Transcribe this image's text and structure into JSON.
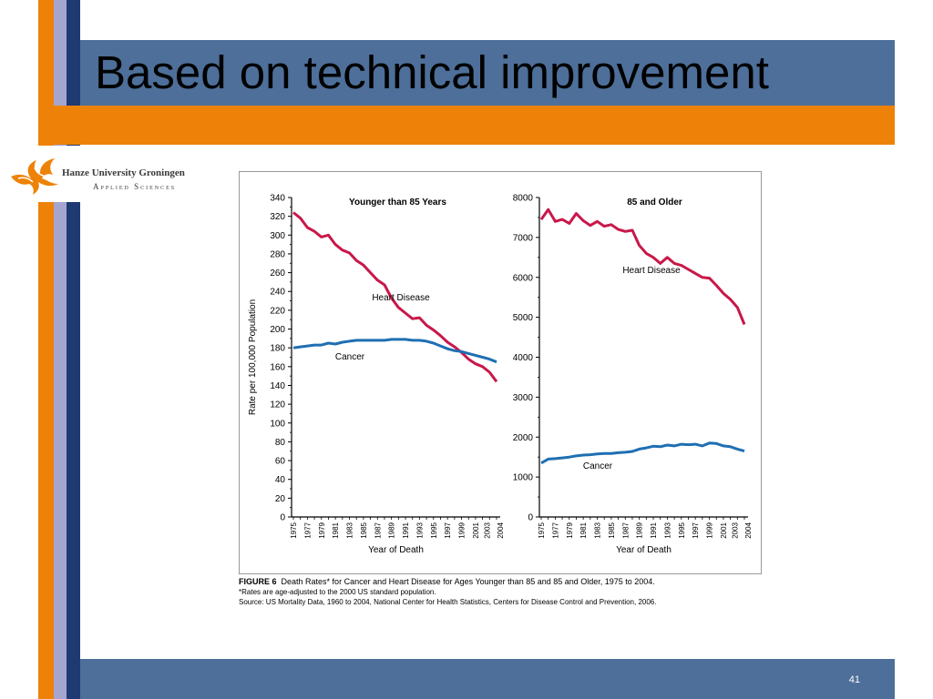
{
  "slide": {
    "title": "Based on technical improvement",
    "page_number": "41"
  },
  "logo": {
    "name": "Hanze University Groningen",
    "subtitle": "Applied Sciences",
    "icon": "flame-logo-icon"
  },
  "colors": {
    "heart_disease": "#c8184a",
    "cancer": "#1f6fb2",
    "orange": "#ee8208",
    "blue_bar": "#4d6f99",
    "navy": "#1f3a72"
  },
  "caption": {
    "figure_label": "FIGURE 6",
    "figure_text": "Death Rates* for Cancer and Heart Disease for Ages Younger than 85 and 85 and Older, 1975 to 2004.",
    "note": "*Rates are age-adjusted to the 2000 US standard population.",
    "source": "Source: US Mortality Data, 1960 to 2004, National Center for Health Statistics, Centers for Disease Control and Prevention, 2006."
  },
  "chart_data": [
    {
      "type": "line",
      "title": "Younger than 85 Years",
      "xlabel": "Year of Death",
      "ylabel": "Rate per 100,000 Population",
      "ylim": [
        0,
        340
      ],
      "yticks": [
        0,
        20,
        40,
        60,
        80,
        100,
        120,
        140,
        160,
        180,
        200,
        220,
        240,
        260,
        280,
        300,
        320,
        340
      ],
      "xticks": [
        "1975",
        "1977",
        "1979",
        "1981",
        "1983",
        "1985",
        "1987",
        "1989",
        "1991",
        "1993",
        "1995",
        "1997",
        "1999",
        "2001",
        "2003",
        "2004"
      ],
      "x": [
        1975,
        1976,
        1977,
        1978,
        1979,
        1980,
        1981,
        1982,
        1983,
        1984,
        1985,
        1986,
        1987,
        1988,
        1989,
        1990,
        1991,
        1992,
        1993,
        1994,
        1995,
        1996,
        1997,
        1998,
        1999,
        2000,
        2001,
        2002,
        2003,
        2004
      ],
      "series": [
        {
          "name": "Heart Disease",
          "values": [
            324,
            318,
            308,
            304,
            298,
            300,
            290,
            284,
            281,
            273,
            268,
            260,
            252,
            247,
            233,
            223,
            217,
            211,
            212,
            204,
            199,
            193,
            186,
            181,
            175,
            168,
            163,
            160,
            154,
            144
          ]
        },
        {
          "name": "Cancer",
          "values": [
            180,
            181,
            182,
            183,
            183,
            185,
            184,
            186,
            187,
            188,
            188,
            188,
            188,
            188,
            189,
            189,
            189,
            188,
            188,
            187,
            185,
            182,
            179,
            177,
            176,
            174,
            172,
            170,
            168,
            165
          ]
        }
      ]
    },
    {
      "type": "line",
      "title": "85 and Older",
      "xlabel": "Year of Death",
      "ylabel": "",
      "ylim": [
        0,
        8000
      ],
      "yticks": [
        0,
        1000,
        2000,
        3000,
        4000,
        5000,
        6000,
        7000,
        8000
      ],
      "xticks": [
        "1975",
        "1977",
        "1979",
        "1981",
        "1983",
        "1985",
        "1987",
        "1989",
        "1991",
        "1993",
        "1995",
        "1997",
        "1999",
        "2001",
        "2003",
        "2004"
      ],
      "x": [
        1975,
        1976,
        1977,
        1978,
        1979,
        1980,
        1981,
        1982,
        1983,
        1984,
        1985,
        1986,
        1987,
        1988,
        1989,
        1990,
        1991,
        1992,
        1993,
        1994,
        1995,
        1996,
        1997,
        1998,
        1999,
        2000,
        2001,
        2002,
        2003,
        2004
      ],
      "series": [
        {
          "name": "Heart Disease",
          "values": [
            7450,
            7700,
            7400,
            7450,
            7350,
            7600,
            7420,
            7300,
            7400,
            7280,
            7320,
            7200,
            7150,
            7180,
            6800,
            6600,
            6500,
            6350,
            6500,
            6350,
            6300,
            6200,
            6100,
            6000,
            5980,
            5800,
            5600,
            5450,
            5250,
            4820
          ]
        },
        {
          "name": "Cancer",
          "values": [
            1350,
            1450,
            1460,
            1480,
            1500,
            1530,
            1550,
            1560,
            1580,
            1590,
            1590,
            1610,
            1620,
            1640,
            1700,
            1730,
            1770,
            1760,
            1800,
            1780,
            1820,
            1810,
            1820,
            1780,
            1850,
            1840,
            1780,
            1760,
            1700,
            1650
          ]
        }
      ]
    }
  ]
}
